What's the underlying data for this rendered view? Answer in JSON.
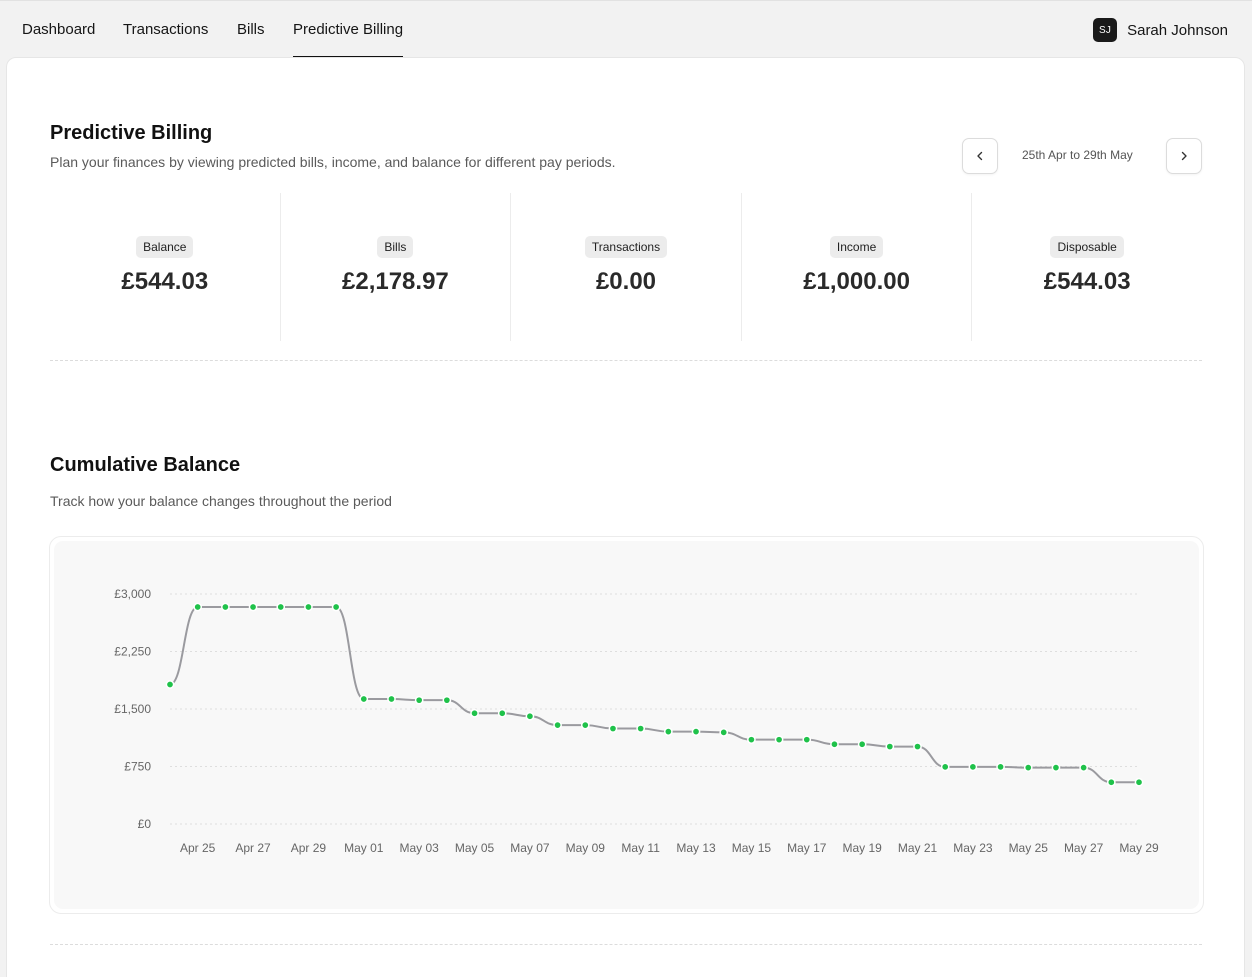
{
  "nav": {
    "tabs": [
      {
        "label": "Dashboard",
        "active": false
      },
      {
        "label": "Transactions",
        "active": false
      },
      {
        "label": "Bills",
        "active": false
      },
      {
        "label": "Predictive Billing",
        "active": true
      }
    ]
  },
  "user": {
    "initials": "SJ",
    "name": "Sarah Johnson"
  },
  "page": {
    "title": "Predictive Billing",
    "subtitle": "Plan your finances by viewing predicted bills, income, and balance for different pay periods."
  },
  "period": {
    "label": "25th Apr to 29th May",
    "prev_icon": "chevron-left-icon",
    "next_icon": "chevron-right-icon"
  },
  "stats": [
    {
      "label": "Balance",
      "value": "£544.03"
    },
    {
      "label": "Bills",
      "value": "£2,178.97"
    },
    {
      "label": "Transactions",
      "value": "£0.00"
    },
    {
      "label": "Income",
      "value": "£1,000.00"
    },
    {
      "label": "Disposable",
      "value": "£544.03"
    }
  ],
  "section": {
    "title": "Cumulative Balance",
    "subtitle": "Track how your balance changes throughout the period"
  },
  "colors": {
    "line": "#9a9a9f",
    "point": "#1fc24a",
    "accent": "#111111"
  },
  "chart_data": {
    "type": "line",
    "title": "",
    "xlabel": "",
    "ylabel": "",
    "ylim": [
      0,
      3000
    ],
    "y_ticks": [
      "£0",
      "£750",
      "£1,500",
      "£2,250",
      "£3,000"
    ],
    "y_tick_values": [
      0,
      750,
      1500,
      2250,
      3000
    ],
    "x_tick_labels": [
      "Apr 25",
      "Apr 27",
      "Apr 29",
      "May 01",
      "May 03",
      "May 05",
      "May 07",
      "May 09",
      "May 11",
      "May 13",
      "May 15",
      "May 17",
      "May 19",
      "May 21",
      "May 23",
      "May 25",
      "May 27",
      "May 29"
    ],
    "grid": true,
    "series": [
      {
        "x": [
          "Apr 24",
          "Apr 25",
          "Apr 26",
          "Apr 27",
          "Apr 28",
          "Apr 29",
          "Apr 30",
          "May 01",
          "May 02",
          "May 03",
          "May 04",
          "May 05",
          "May 06",
          "May 07",
          "May 08",
          "May 09",
          "May 10",
          "May 11",
          "May 12",
          "May 13",
          "May 14",
          "May 15",
          "May 16",
          "May 17",
          "May 18",
          "May 19",
          "May 20",
          "May 21",
          "May 22",
          "May 23",
          "May 24",
          "May 25",
          "May 26",
          "May 27",
          "May 28",
          "May 29"
        ],
        "values": [
          1820,
          2830,
          2830,
          2830,
          2830,
          2830,
          2830,
          1630,
          1630,
          1615,
          1615,
          1445,
          1445,
          1405,
          1290,
          1290,
          1245,
          1245,
          1205,
          1205,
          1195,
          1100,
          1100,
          1100,
          1040,
          1040,
          1010,
          1010,
          745,
          745,
          745,
          735,
          735,
          735,
          545,
          545
        ]
      }
    ]
  }
}
